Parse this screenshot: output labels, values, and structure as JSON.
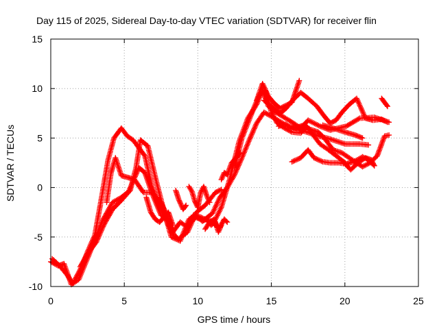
{
  "chart_data": {
    "type": "scatter",
    "title": "Day 115 of 2025, Sidereal Day-to-day VTEC variation (SDTVAR) for receiver flin",
    "xlabel": "GPS time / hours",
    "ylabel": "SDTVAR / TECUs",
    "xlim": [
      0,
      25
    ],
    "ylim": [
      -10,
      15
    ],
    "x_ticks": [
      "0",
      "5",
      "10",
      "15",
      "20",
      "25"
    ],
    "y_ticks": [
      "-10",
      "-5",
      "0",
      "5",
      "10",
      "15"
    ],
    "grid": true,
    "marker": "plus",
    "legend": "none",
    "colors": {
      "series": "#ff0000",
      "grid": "#a0a0a0",
      "axes": "#000000"
    },
    "series": [
      {
        "traces": [
          [
            [
              0.0,
              -7.5
            ],
            [
              0.5,
              -7.9
            ],
            [
              0.9,
              -7.7
            ],
            [
              1.4,
              -9.8
            ],
            [
              1.9,
              -9.3
            ],
            [
              2.4,
              -7.5
            ],
            [
              3.0,
              -5.3
            ],
            [
              3.5,
              -3.4
            ],
            [
              4.2,
              -1.5
            ],
            [
              4.8,
              -1.0
            ],
            [
              5.3,
              -0.4
            ],
            [
              5.7,
              1.0
            ],
            [
              6.0,
              2.0
            ],
            [
              6.4,
              1.5
            ],
            [
              7.0,
              -1.0
            ],
            [
              7.5,
              -2.8
            ],
            [
              8.0,
              -3.2
            ],
            [
              8.3,
              -4.5
            ],
            [
              8.8,
              -3.5
            ],
            [
              9.3,
              -4.0
            ],
            [
              9.8,
              -3.0
            ],
            [
              10.4,
              -3.3
            ],
            [
              11.0,
              -2.6
            ],
            [
              11.5,
              -1.0
            ],
            [
              12.0,
              0.0
            ],
            [
              12.5,
              1.3
            ],
            [
              13.0,
              3.0
            ],
            [
              13.5,
              4.8
            ],
            [
              14.0,
              6.5
            ],
            [
              14.5,
              7.6
            ],
            [
              15.0,
              7.2
            ],
            [
              16.0,
              6.3
            ],
            [
              17.0,
              5.8
            ],
            [
              18.0,
              5.3
            ],
            [
              19.0,
              4.9
            ],
            [
              20.0,
              4.4
            ],
            [
              21.0,
              4.4
            ],
            [
              21.6,
              4.3
            ]
          ],
          [
            [
              0.1,
              -7.2
            ],
            [
              0.6,
              -7.9
            ],
            [
              1.1,
              -8.8
            ],
            [
              1.5,
              -9.7
            ],
            [
              2.0,
              -8.3
            ],
            [
              2.5,
              -6.5
            ],
            [
              3.0,
              -4.8
            ],
            [
              3.4,
              -1.5
            ],
            [
              3.9,
              2.8
            ],
            [
              4.3,
              5.0
            ],
            [
              4.8,
              6.0
            ],
            [
              5.2,
              5.2
            ],
            [
              5.6,
              4.8
            ],
            [
              6.0,
              4.0
            ],
            [
              6.4,
              3.2
            ],
            [
              6.9,
              0.0
            ],
            [
              7.3,
              -1.5
            ],
            [
              7.7,
              -2.8
            ],
            [
              8.0,
              -3.8
            ],
            [
              8.4,
              -4.8
            ],
            [
              8.7,
              -5.2
            ],
            [
              9.3,
              -4.5
            ],
            [
              9.9,
              -2.5
            ],
            [
              10.5,
              -1.8
            ],
            [
              11.2,
              -0.5
            ],
            [
              11.6,
              -0.2
            ]
          ],
          [
            [
              3.8,
              -1.5
            ],
            [
              4.1,
              1.5
            ],
            [
              4.4,
              3.0
            ],
            [
              4.8,
              1.2
            ],
            [
              5.3,
              1.0
            ],
            [
              5.7,
              0.8
            ],
            [
              6.3,
              -0.5
            ],
            [
              6.9,
              -0.5
            ],
            [
              7.5,
              -1.5
            ],
            [
              7.9,
              -2.8
            ]
          ],
          [
            [
              2.0,
              -8.0
            ],
            [
              2.6,
              -6.5
            ],
            [
              3.1,
              -5.5
            ],
            [
              3.6,
              -3.8
            ],
            [
              4.2,
              -2.2
            ],
            [
              4.8,
              -1.3
            ],
            [
              5.4,
              -0.3
            ],
            [
              5.8,
              2.0
            ],
            [
              6.1,
              4.8
            ],
            [
              6.6,
              4.2
            ],
            [
              7.2,
              0.5
            ],
            [
              7.7,
              -2.4
            ],
            [
              8.2,
              -5.0
            ],
            [
              8.8,
              -5.4
            ],
            [
              9.4,
              -3.2
            ],
            [
              9.9,
              -2.8
            ],
            [
              10.5,
              -3.2
            ],
            [
              11.1,
              -3.5
            ],
            [
              11.6,
              -2.0
            ],
            [
              12.2,
              1.0
            ],
            [
              12.8,
              4.6
            ],
            [
              13.4,
              7.0
            ],
            [
              14.0,
              8.4
            ],
            [
              14.4,
              9.8
            ],
            [
              14.8,
              8.2
            ],
            [
              15.3,
              7.6
            ],
            [
              16.3,
              6.7
            ],
            [
              17.0,
              6.0
            ],
            [
              17.5,
              6.8
            ],
            [
              18.3,
              6.2
            ],
            [
              19.0,
              5.8
            ],
            [
              20.1,
              6.2
            ],
            [
              21.0,
              7.0
            ],
            [
              22.0,
              7.1
            ],
            [
              23.0,
              6.6
            ]
          ],
          [
            [
              12.5,
              2.0
            ],
            [
              13.0,
              5.0
            ],
            [
              13.4,
              6.5
            ],
            [
              13.8,
              8.0
            ],
            [
              14.2,
              9.4
            ],
            [
              14.6,
              9.8
            ],
            [
              15.0,
              7.6
            ],
            [
              15.4,
              6.5
            ],
            [
              15.9,
              6.0
            ],
            [
              16.4,
              5.6
            ],
            [
              17.0,
              5.5
            ],
            [
              17.4,
              6.2
            ],
            [
              18.3,
              4.4
            ],
            [
              18.8,
              3.9
            ],
            [
              19.5,
              3.1
            ],
            [
              20.1,
              2.4
            ],
            [
              20.6,
              2.6
            ],
            [
              21.2,
              3.1
            ],
            [
              21.6,
              2.8
            ],
            [
              22.0,
              2.2
            ]
          ],
          [
            [
              14.5,
              8.8
            ],
            [
              15.1,
              8.1
            ],
            [
              15.6,
              7.5
            ],
            [
              16.0,
              8.0
            ],
            [
              16.5,
              8.9
            ],
            [
              17.0,
              9.6
            ],
            [
              17.5,
              9.0
            ],
            [
              18.1,
              8.2
            ],
            [
              18.6,
              7.2
            ],
            [
              19.0,
              6.5
            ],
            [
              19.4,
              6.8
            ],
            [
              19.8,
              7.6
            ],
            [
              20.3,
              8.4
            ],
            [
              20.8,
              9.0
            ],
            [
              21.4,
              7.0
            ],
            [
              21.9,
              6.8
            ],
            [
              22.5,
              6.9
            ],
            [
              22.9,
              6.6
            ]
          ],
          [
            [
              15.5,
              6.2
            ],
            [
              16.0,
              6.4
            ],
            [
              16.3,
              6.0
            ],
            [
              16.8,
              6.1
            ],
            [
              17.2,
              6.3
            ],
            [
              17.6,
              5.9
            ],
            [
              18.2,
              5.6
            ],
            [
              18.6,
              5.0
            ],
            [
              19.2,
              3.8
            ],
            [
              19.8,
              3.5
            ],
            [
              20.3,
              3.0
            ],
            [
              20.8,
              2.5
            ],
            [
              21.2,
              2.1
            ],
            [
              21.7,
              2.5
            ],
            [
              22.2,
              3.2
            ],
            [
              22.7,
              5.2
            ],
            [
              23.0,
              5.3
            ]
          ],
          [
            [
              16.4,
              2.6
            ],
            [
              17.0,
              3.0
            ],
            [
              17.5,
              3.8
            ],
            [
              17.9,
              3.0
            ],
            [
              18.5,
              2.6
            ],
            [
              19.0,
              2.5
            ],
            [
              19.6,
              2.5
            ],
            [
              20.0,
              2.4
            ],
            [
              20.4,
              1.8
            ],
            [
              20.9,
              2.5
            ],
            [
              21.4,
              3.0
            ],
            [
              21.8,
              2.8
            ],
            [
              22.0,
              2.2
            ]
          ],
          [
            [
              14.0,
              8.8
            ],
            [
              14.4,
              10.5
            ],
            [
              14.8,
              9.2
            ],
            [
              15.2,
              8.5
            ],
            [
              15.6,
              8.0
            ],
            [
              16.0,
              8.3
            ],
            [
              16.4,
              8.6
            ],
            [
              16.9,
              10.8
            ]
          ],
          [
            [
              18.5,
              6.3
            ],
            [
              19.2,
              6.0
            ],
            [
              20.0,
              5.6
            ],
            [
              20.7,
              5.3
            ],
            [
              21.2,
              5.0
            ]
          ],
          [
            [
              22.5,
              9.0
            ],
            [
              22.7,
              8.6
            ],
            [
              22.9,
              8.2
            ]
          ],
          [
            [
              6.5,
              -1.0
            ],
            [
              6.8,
              -2.5
            ],
            [
              7.1,
              -3.2
            ],
            [
              7.4,
              -3.5
            ],
            [
              7.7,
              -3.0
            ],
            [
              8.0,
              -2.5
            ],
            [
              8.3,
              -3.8
            ]
          ],
          [
            [
              9.4,
              -3.5
            ],
            [
              9.7,
              -2.8
            ],
            [
              10.0,
              -3.0
            ],
            [
              10.3,
              -3.4
            ],
            [
              10.6,
              -3.2
            ],
            [
              10.9,
              -3.8
            ],
            [
              11.2,
              -3.5
            ],
            [
              11.4,
              -4.5
            ],
            [
              11.6,
              -3.8
            ]
          ],
          [
            [
              10.5,
              -4.2
            ],
            [
              10.8,
              -3.5
            ],
            [
              11.1,
              -3.2
            ],
            [
              11.3,
              -4.0
            ],
            [
              11.5,
              -4.0
            ],
            [
              11.8,
              -3.2
            ],
            [
              12.0,
              -3.5
            ]
          ],
          [
            [
              11.6,
              0.8
            ],
            [
              11.8,
              1.5
            ],
            [
              12.0,
              1.3
            ],
            [
              12.3,
              2.5
            ],
            [
              12.6,
              3.0
            ],
            [
              12.9,
              3.5
            ]
          ],
          [
            [
              9.4,
              0.1
            ],
            [
              9.6,
              -0.4
            ],
            [
              9.8,
              -1.4
            ],
            [
              10.0,
              -2.0
            ],
            [
              10.2,
              -0.5
            ],
            [
              10.4,
              0.1
            ],
            [
              10.6,
              -0.8
            ],
            [
              10.8,
              -1.5
            ]
          ],
          [
            [
              8.5,
              -0.3
            ],
            [
              8.7,
              -1.2
            ],
            [
              9.0,
              -2.2
            ],
            [
              9.2,
              -1.8
            ]
          ]
        ]
      }
    ]
  }
}
